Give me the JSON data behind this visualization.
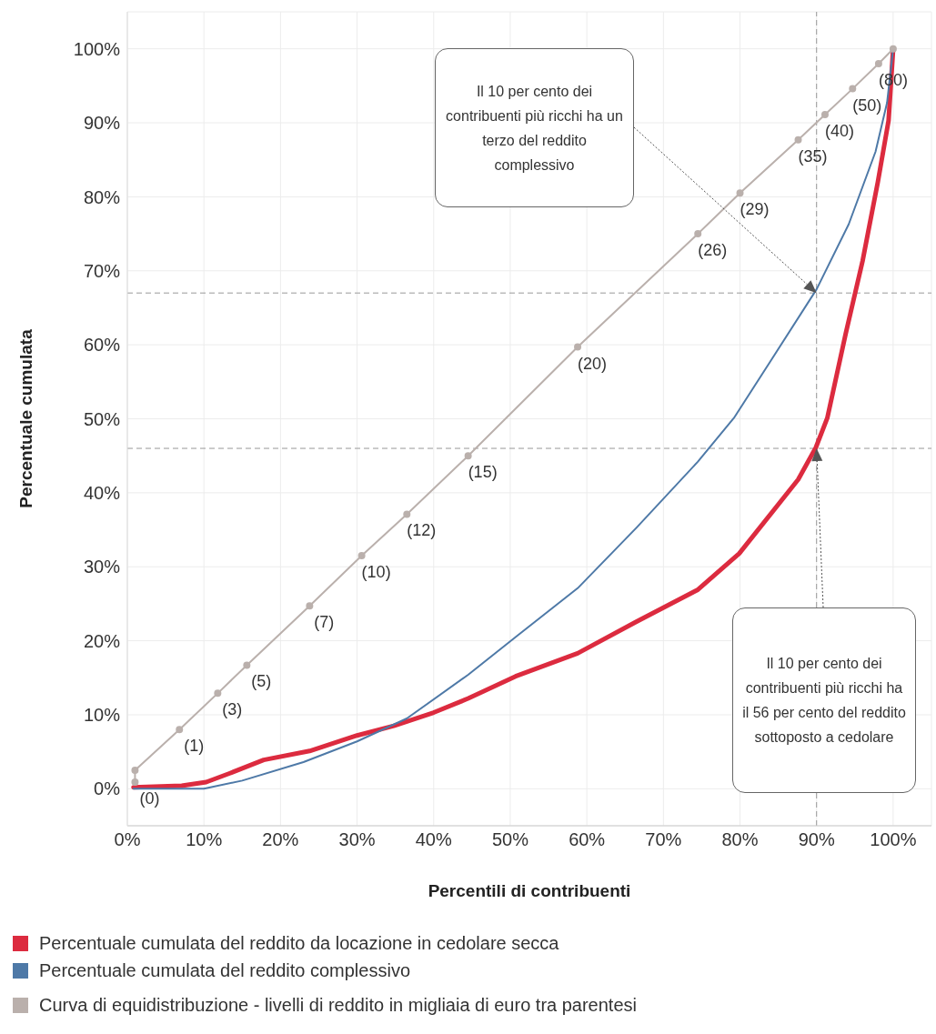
{
  "chart_data": {
    "type": "line",
    "xlabel": "Percentili di contribuenti",
    "ylabel": "Percentuale cumulata",
    "xlim": [
      0,
      105
    ],
    "ylim": [
      -5,
      105
    ],
    "xticks": [
      {
        "value": 0,
        "label": "0%"
      },
      {
        "value": 10,
        "label": "10%"
      },
      {
        "value": 20,
        "label": "20%"
      },
      {
        "value": 30,
        "label": "30%"
      },
      {
        "value": 40,
        "label": "40%"
      },
      {
        "value": 50,
        "label": "50%"
      },
      {
        "value": 60,
        "label": "60%"
      },
      {
        "value": 70,
        "label": "70%"
      },
      {
        "value": 80,
        "label": "80%"
      },
      {
        "value": 90,
        "label": "90%"
      },
      {
        "value": 100,
        "label": "100%"
      }
    ],
    "yticks": [
      {
        "value": 0,
        "label": "0%"
      },
      {
        "value": 10,
        "label": "10%"
      },
      {
        "value": 20,
        "label": "20%"
      },
      {
        "value": 30,
        "label": "30%"
      },
      {
        "value": 40,
        "label": "40%"
      },
      {
        "value": 50,
        "label": "50%"
      },
      {
        "value": 60,
        "label": "60%"
      },
      {
        "value": 70,
        "label": "70%"
      },
      {
        "value": 80,
        "label": "80%"
      },
      {
        "value": 90,
        "label": "90%"
      },
      {
        "value": 100,
        "label": "100%"
      }
    ],
    "grid": true,
    "legend": "bottom",
    "line_style": "solid",
    "series": [
      {
        "name": "Percentuale cumulata del reddito da locazione in cedolare secca",
        "color": "#dc2b3f",
        "marker": "none",
        "x": [
          0.8,
          7.1,
          10.3,
          13.4,
          17.8,
          23.8,
          30,
          34.8,
          40,
          44.5,
          50.7,
          58.8,
          66.5,
          74.5,
          79.9,
          87.6,
          89.9,
          91.4,
          93.8,
          96,
          98,
          99.4,
          100
        ],
        "values": [
          0.2,
          0.4,
          0.9,
          2.1,
          3.9,
          5.1,
          7.2,
          8.5,
          10.3,
          12.2,
          15.2,
          18.3,
          22.6,
          26.9,
          31.8,
          41.8,
          46.1,
          50.1,
          61.5,
          71.3,
          82,
          90.3,
          100
        ]
      },
      {
        "name": "Percentuale cumulata del reddito complessivo",
        "color": "#4e79a7",
        "marker": "none",
        "x": [
          0.8,
          10,
          15,
          23,
          30,
          36.5,
          44.5,
          50.7,
          58.8,
          66.5,
          74.5,
          79.2,
          84.3,
          90,
          94.2,
          97.7,
          99.2,
          100
        ],
        "values": [
          0,
          0,
          1.1,
          3.6,
          6.4,
          9.5,
          15.4,
          20.5,
          27.1,
          35.3,
          44.2,
          50.1,
          58.3,
          67.5,
          76.3,
          86.1,
          92.7,
          100
        ]
      },
      {
        "name": "Curva di equidistribuzione - livelli di reddito in migliaia di euro tra parentesi",
        "color": "#bab0ac",
        "marker": "circle",
        "x": [
          1,
          1,
          6.8,
          11.8,
          15.6,
          23.8,
          30.6,
          36.5,
          44.5,
          58.8,
          74.5,
          80,
          87.6,
          91.1,
          94.7,
          98.1,
          100
        ],
        "values": [
          0.9,
          2.5,
          8,
          12.9,
          16.7,
          24.7,
          31.5,
          37.1,
          45,
          59.7,
          75,
          80.5,
          87.7,
          91.1,
          94.6,
          98,
          100
        ]
      }
    ],
    "ref_lines": [
      {
        "axis": "y",
        "value": 67,
        "line_style": "dashed"
      },
      {
        "axis": "y",
        "value": 46,
        "line_style": "dashed"
      },
      {
        "axis": "x",
        "value": 90,
        "line_style": "dashed"
      }
    ],
    "annotations": [
      "Il 10 per cento dei contribuenti più ricchi ha un terzo del reddito complessivo",
      "Il 10 per cento dei contribuenti più ricchi ha il 56 per cento del reddito sottoposto a cedolare",
      {
        "text": "(0)",
        "x": 1,
        "y": 0.9
      },
      {
        "text": "(1)",
        "x": 6.8,
        "y": 8
      },
      {
        "text": "(3)",
        "x": 11.8,
        "y": 12.9
      },
      {
        "text": "(5)",
        "x": 15.6,
        "y": 16.7
      },
      {
        "text": "(7)",
        "x": 23.8,
        "y": 24.7
      },
      {
        "text": "(10)",
        "x": 30.6,
        "y": 31.5
      },
      {
        "text": "(12)",
        "x": 36.5,
        "y": 37.1
      },
      {
        "text": "(15)",
        "x": 44.5,
        "y": 45
      },
      {
        "text": "(20)",
        "x": 58.8,
        "y": 59.7
      },
      {
        "text": "(26)",
        "x": 74.5,
        "y": 75
      },
      {
        "text": "(29)",
        "x": 80,
        "y": 80.5
      },
      {
        "text": "(35)",
        "x": 87.6,
        "y": 87.7
      },
      {
        "text": "(40)",
        "x": 91.1,
        "y": 91.1
      },
      {
        "text": "(50)",
        "x": 94.7,
        "y": 94.6
      },
      {
        "text": "(80)",
        "x": 98.1,
        "y": 98
      }
    ]
  }
}
